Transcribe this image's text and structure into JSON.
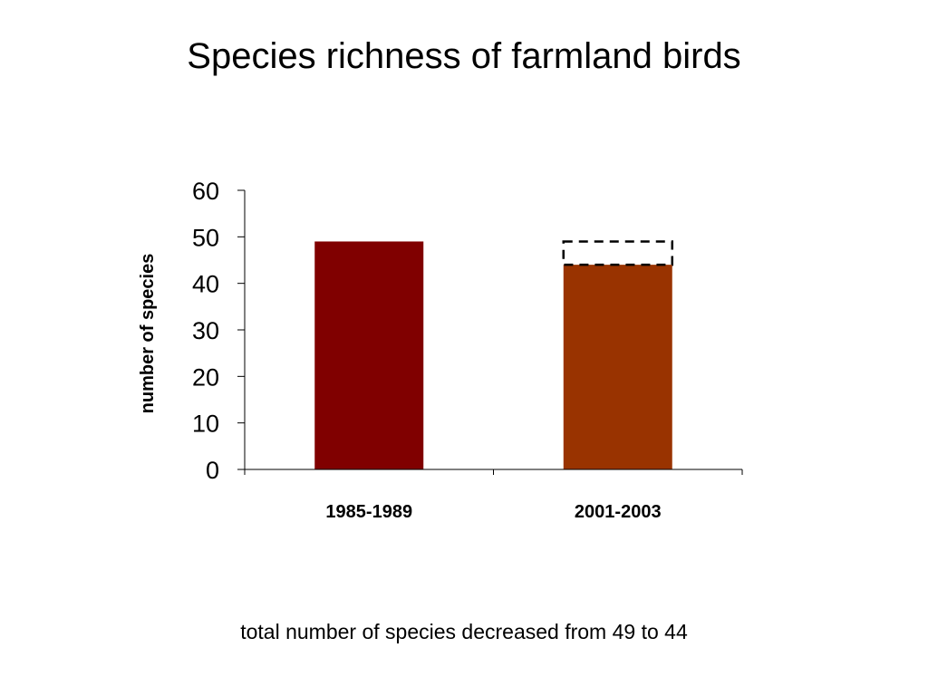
{
  "slide": {
    "title": "Species richness of farmland birds",
    "caption": "total number of species decreased from 49 to 44"
  },
  "chart_data": {
    "type": "bar",
    "categories": [
      "1985-1989",
      "2001-2003"
    ],
    "values": [
      49,
      44
    ],
    "previous_value_outline": {
      "category": "2001-2003",
      "from": 44,
      "to": 49,
      "style": "dashed"
    },
    "colors": [
      "#800000",
      "#993300"
    ],
    "title": "",
    "xlabel": "",
    "ylabel": "number of species",
    "ylim": [
      0,
      60
    ],
    "yticks": [
      0,
      10,
      20,
      30,
      40,
      50,
      60
    ],
    "grid": false,
    "legend": "none"
  }
}
